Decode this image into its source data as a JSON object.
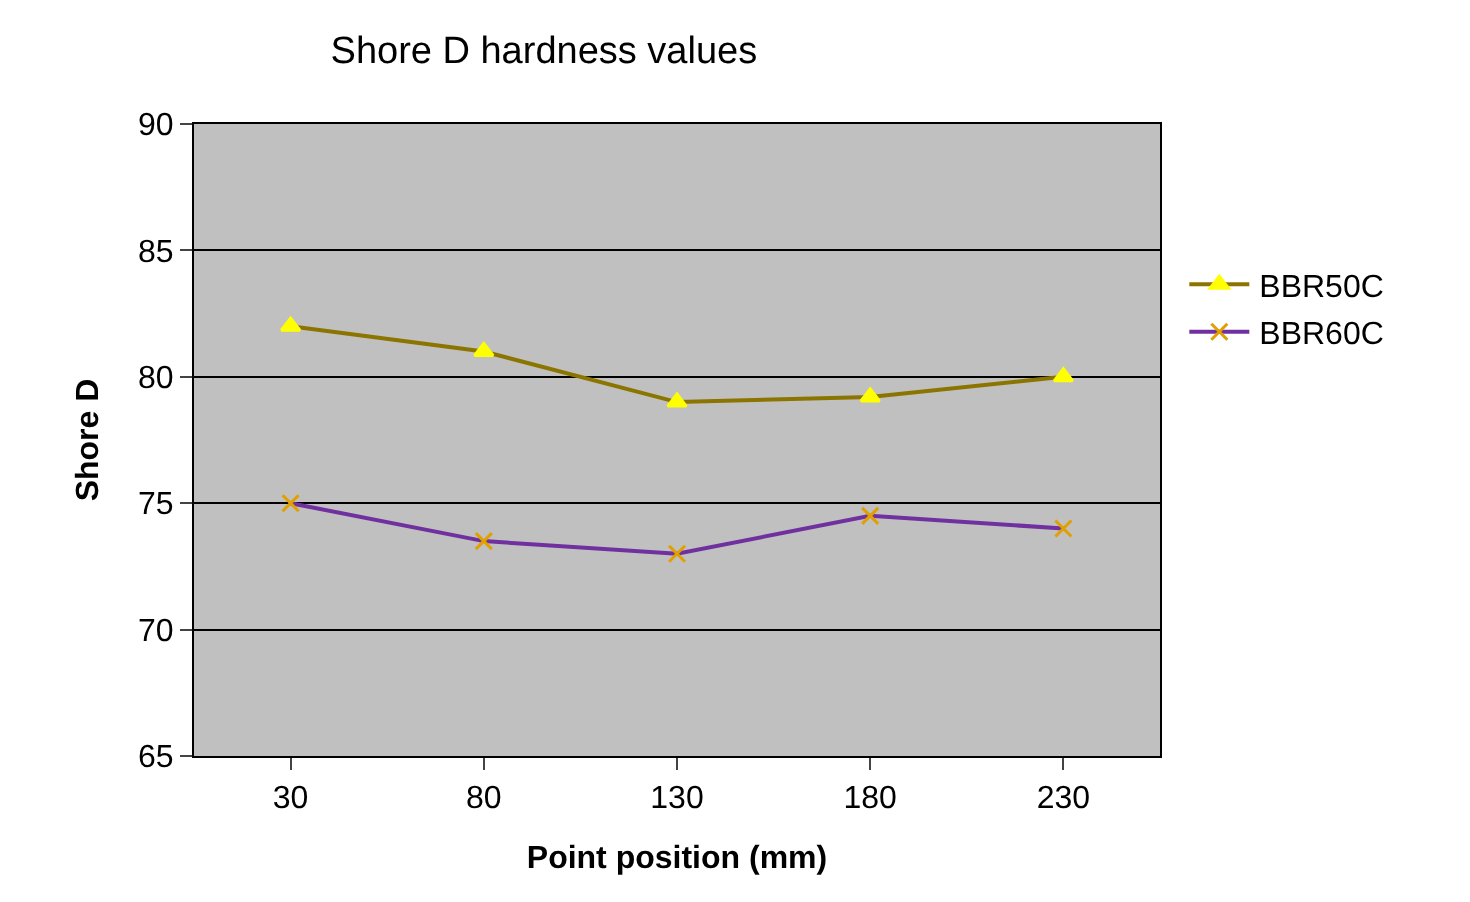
{
  "chart_data": {
    "type": "line",
    "title": "Shore D hardness values",
    "xlabel": "Point position (mm)",
    "ylabel": "Shore D",
    "categories": [
      "30",
      "80",
      "130",
      "180",
      "230"
    ],
    "series": [
      {
        "name": "BBR50C",
        "color": "#8b7500",
        "values": [
          82,
          81,
          79,
          79.2,
          80
        ],
        "marker": "triangle"
      },
      {
        "name": "BBR60C",
        "color": "#7030a0",
        "values": [
          75,
          73.5,
          73,
          74.5,
          74
        ],
        "marker": "cross"
      }
    ],
    "ylim": [
      65,
      90
    ],
    "yticks": [
      65,
      70,
      75,
      80,
      85,
      90
    ],
    "grid": "y",
    "legend": "right",
    "line_style": "solid"
  }
}
